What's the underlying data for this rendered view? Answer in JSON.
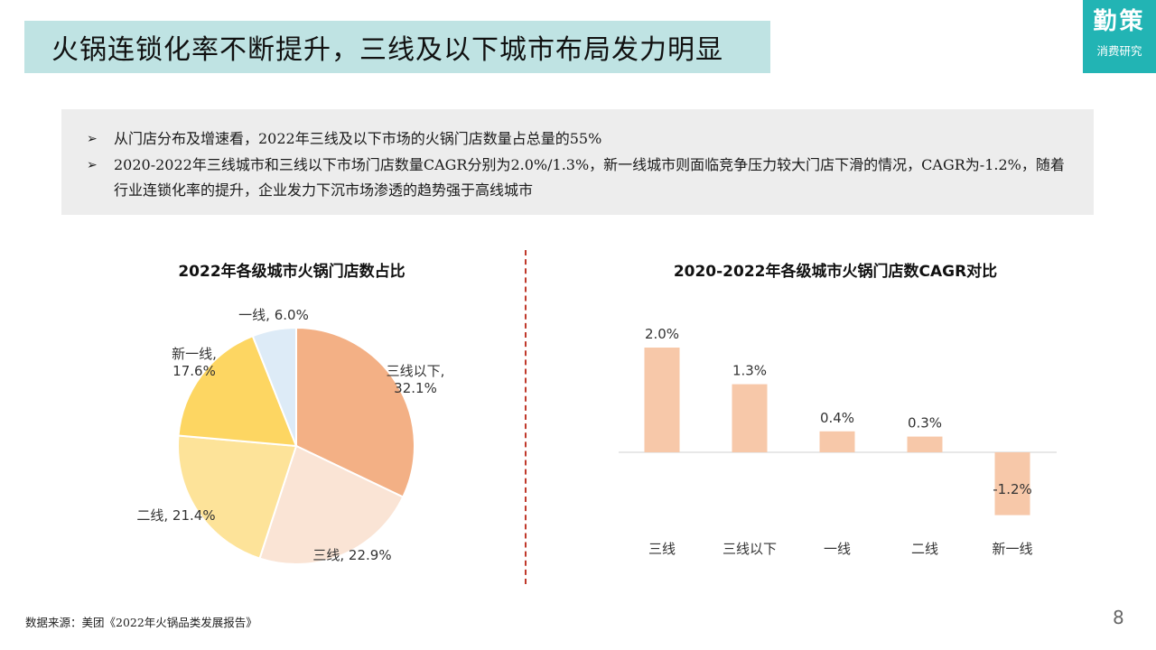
{
  "title": "火锅连锁化率不断提升，三线及以下城市布局发力明显",
  "brand": {
    "name": "勤策",
    "sub": "消费研究"
  },
  "summary": [
    {
      "marker": "➢",
      "text": "从门店分布及增速看，2022年三线及以下市场的火锅门店数量占总量的55%"
    },
    {
      "marker": "➢",
      "text": "2020-2022年三线城市和三线以下市场门店数量CAGR分别为2.0%/1.3%，新一线城市则面临竞争压力较大门店下滑的情况，CAGR为-1.2%，随着行业连锁化率的提升，企业发力下沉市场渗透的趋势强于高线城市"
    }
  ],
  "colors": {
    "pie": [
      "#f3b085",
      "#fae4d5",
      "#fde399",
      "#fdd662",
      "#ddebf7"
    ],
    "bar": "#f7c8a9",
    "divider": "#c0392b"
  },
  "chart_data": [
    {
      "type": "pie",
      "title": "2022年各级城市火锅门店数占比",
      "slices": [
        {
          "name": "三线以下",
          "value": 32.1,
          "label_lines": [
            "三线以下,",
            "32.1%"
          ]
        },
        {
          "name": "三线",
          "value": 22.9,
          "label_lines": [
            "三线, 22.9%"
          ]
        },
        {
          "name": "二线",
          "value": 21.4,
          "label_lines": [
            "二线, 21.4%"
          ]
        },
        {
          "name": "新一线",
          "value": 17.6,
          "label_lines": [
            "新一线,",
            "17.6%"
          ]
        },
        {
          "name": "一线",
          "value": 6.0,
          "label_lines": [
            "一线, 6.0%"
          ]
        }
      ]
    },
    {
      "type": "bar",
      "title": "2020-2022年各级城市火锅门店数CAGR对比",
      "categories": [
        "三线",
        "三线以下",
        "一线",
        "二线",
        "新一线"
      ],
      "values": [
        2.0,
        1.3,
        0.4,
        0.3,
        -1.2
      ],
      "value_labels": [
        "2.0%",
        "1.3%",
        "0.4%",
        "0.3%",
        "-1.2%"
      ]
    }
  ],
  "source": "数据来源：美团《2022年火锅品类发展报告》",
  "page_number": "8"
}
